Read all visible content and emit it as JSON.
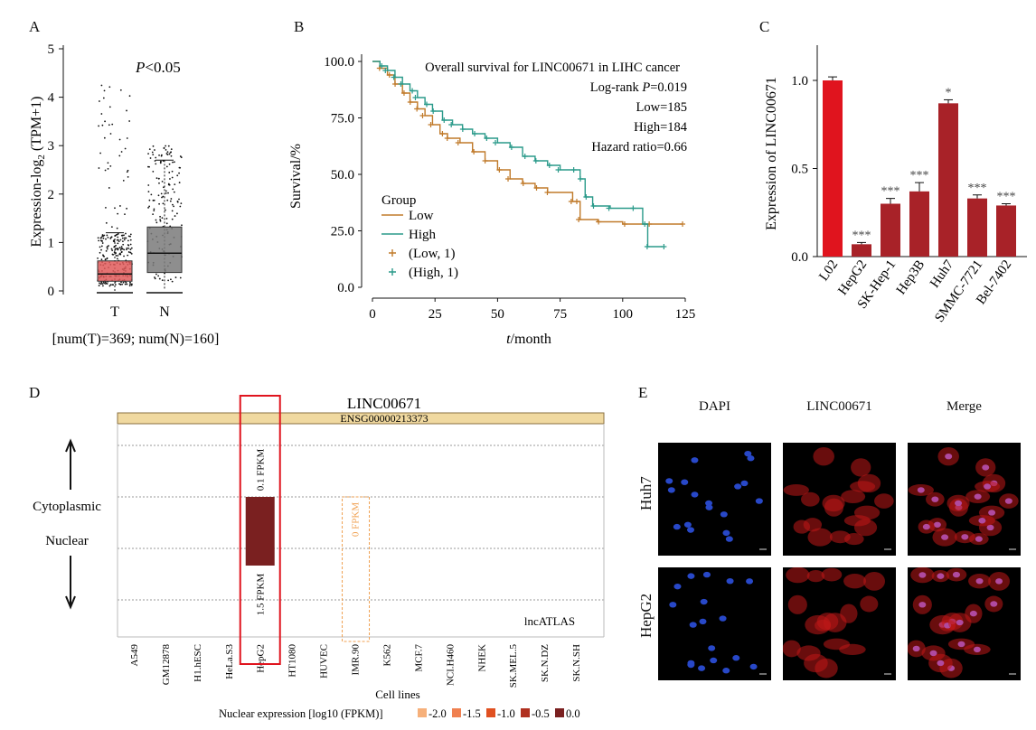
{
  "panels": {
    "A": "A",
    "B": "B",
    "C": "C",
    "D": "D",
    "E": "E"
  },
  "chart_data": [
    {
      "id": "A",
      "type": "box",
      "ylabel_main": "Expression-log",
      "ylabel_sub": "2",
      "ylabel_tail": " (TPM+1)",
      "ylim": [
        0,
        5
      ],
      "yticks": [
        "0",
        "1",
        "2",
        "3",
        "4",
        "5"
      ],
      "categories": [
        "T",
        "N"
      ],
      "boxes": [
        {
          "name": "T",
          "q1": 0.2,
          "median": 0.35,
          "q3": 0.62,
          "whisker_low": 0,
          "whisker_high": 1.2,
          "color": "#e05a5a"
        },
        {
          "name": "N",
          "q1": 0.38,
          "median": 0.78,
          "q3": 1.32,
          "whisker_low": 0.05,
          "whisker_high": 2.7,
          "color": "#7a7a7a"
        }
      ],
      "annotation_p": "P",
      "annotation_rest": "<0.05",
      "footnote": "[num(T)=369; num(N)=160]"
    },
    {
      "id": "B",
      "type": "line",
      "title": "Overall survival for LINC00671 in LIHC cancer",
      "stats": [
        "Log-rank P=0.019",
        "Low=185",
        "High=184",
        "Hazard ratio=0.66"
      ],
      "xlabel_italic": "t",
      "xlabel_rest": "/month",
      "ylabel": "Survival/%",
      "xlim": [
        0,
        125
      ],
      "ylim": [
        0,
        100
      ],
      "xticks": [
        "0",
        "25",
        "50",
        "75",
        "100",
        "125"
      ],
      "yticks": [
        "0.0",
        "25.0",
        "50.0",
        "75.0",
        "100.0"
      ],
      "legend_title": "Group",
      "legend": [
        "Low",
        "High",
        "(Low, 1)",
        "(High, 1)"
      ],
      "series": [
        {
          "name": "Low",
          "color": "#c07a2a",
          "points": [
            [
              0,
              100
            ],
            [
              3,
              97
            ],
            [
              6,
              94
            ],
            [
              9,
              90
            ],
            [
              12,
              86
            ],
            [
              15,
              82
            ],
            [
              18,
              79
            ],
            [
              21,
              76
            ],
            [
              24,
              72
            ],
            [
              27,
              68
            ],
            [
              30,
              66
            ],
            [
              35,
              64
            ],
            [
              40,
              60
            ],
            [
              45,
              56
            ],
            [
              50,
              52
            ],
            [
              55,
              48
            ],
            [
              60,
              46
            ],
            [
              65,
              44
            ],
            [
              70,
              42
            ],
            [
              80,
              38
            ],
            [
              82,
              38
            ],
            [
              83,
              30
            ],
            [
              90,
              29
            ],
            [
              100,
              28
            ],
            [
              110,
              28
            ],
            [
              124,
              28
            ]
          ]
        },
        {
          "name": "High",
          "color": "#2a9a8a",
          "points": [
            [
              0,
              100
            ],
            [
              3,
              98
            ],
            [
              6,
              96
            ],
            [
              9,
              93
            ],
            [
              12,
              90
            ],
            [
              15,
              87
            ],
            [
              18,
              84
            ],
            [
              21,
              81
            ],
            [
              24,
              78
            ],
            [
              28,
              74
            ],
            [
              32,
              72
            ],
            [
              36,
              70
            ],
            [
              40,
              68
            ],
            [
              45,
              66
            ],
            [
              50,
              64
            ],
            [
              55,
              62
            ],
            [
              60,
              58
            ],
            [
              65,
              56
            ],
            [
              70,
              54
            ],
            [
              75,
              52
            ],
            [
              80,
              52
            ],
            [
              83,
              48
            ],
            [
              85,
              40
            ],
            [
              88,
              36
            ],
            [
              95,
              35
            ],
            [
              105,
              35
            ],
            [
              108,
              28
            ],
            [
              110,
              18
            ],
            [
              116,
              18
            ]
          ]
        }
      ]
    },
    {
      "id": "C",
      "type": "bar",
      "ylabel": "Expression of LINC00671",
      "ylim": [
        0,
        1.2
      ],
      "yticks": [
        "0.0",
        "0.5",
        "1.0"
      ],
      "categories": [
        "L02",
        "HepG2",
        "SK-Hep-1",
        "Hep3B",
        "Huh7",
        "SMMC-7721",
        "Bel-7402"
      ],
      "values": [
        1.0,
        0.07,
        0.3,
        0.37,
        0.87,
        0.33,
        0.29
      ],
      "errors": [
        0.02,
        0.01,
        0.03,
        0.05,
        0.02,
        0.02,
        0.01
      ],
      "sig": [
        "",
        "***",
        "***",
        "***",
        "*",
        "***",
        "***"
      ],
      "colors": [
        "#e0141e",
        "#a82228",
        "#a82228",
        "#a82228",
        "#a82228",
        "#a82228",
        "#a82228"
      ]
    },
    {
      "id": "D",
      "type": "bar",
      "gene": "LINC00671",
      "ensg": "ENSG00000213373",
      "upper_label": "Cytoplasmic",
      "lower_label": "Nuclear",
      "xlabel": "Cell lines",
      "watermark": "lncATLAS",
      "categories": [
        "A549",
        "GM12878",
        "H1.hESC",
        "HeLa.S3",
        "HepG2",
        "HT1080",
        "HUVEC",
        "IMR.90",
        "K562",
        "MCF.7",
        "NCI.H460",
        "NHEK",
        "SK.MEL.5",
        "SK.N.DZ",
        "SK.N.SH"
      ],
      "bars": [
        {
          "category": "HepG2",
          "cytoplasmic_label": "0.1 FPKM",
          "nuclear_label": "1.5 FPKM",
          "color": "#7a2020"
        },
        {
          "category": "IMR.90",
          "label": "0 FPKM",
          "color": "#f0a050"
        }
      ],
      "legend_title": "Nuclear expression [log10 (FPKM)]",
      "legend": [
        {
          "label": "-2.0",
          "color": "#f6b07a"
        },
        {
          "label": "-1.5",
          "color": "#f08050"
        },
        {
          "label": "-1.0",
          "color": "#e05020"
        },
        {
          "label": "-0.5",
          "color": "#b03020"
        },
        {
          "label": "0.0",
          "color": "#7a2020"
        }
      ]
    }
  ],
  "microscopy": {
    "columns": [
      "DAPI",
      "LINC00671",
      "Merge"
    ],
    "rows": [
      "Huh7",
      "HepG2"
    ]
  }
}
